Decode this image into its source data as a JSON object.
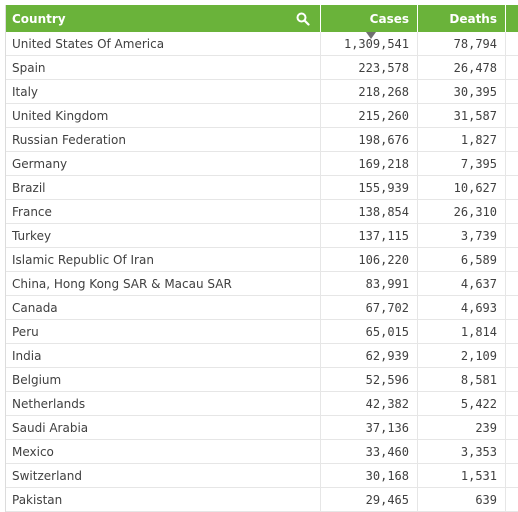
{
  "header": {
    "country": "Country",
    "cases": "Cases",
    "deaths": "Deaths"
  },
  "colors": {
    "header_bg": "#6ab33a",
    "header_text": "#ffffff",
    "row_text": "#404040"
  },
  "icons": {
    "search": "search-icon",
    "sort": "sort-down-indicator"
  },
  "rows": [
    {
      "country": "United States Of America",
      "cases": "1,309,541",
      "deaths": "78,794"
    },
    {
      "country": "Spain",
      "cases": "223,578",
      "deaths": "26,478"
    },
    {
      "country": "Italy",
      "cases": "218,268",
      "deaths": "30,395"
    },
    {
      "country": "United Kingdom",
      "cases": "215,260",
      "deaths": "31,587"
    },
    {
      "country": "Russian Federation",
      "cases": "198,676",
      "deaths": "1,827"
    },
    {
      "country": "Germany",
      "cases": "169,218",
      "deaths": "7,395"
    },
    {
      "country": "Brazil",
      "cases": "155,939",
      "deaths": "10,627"
    },
    {
      "country": "France",
      "cases": "138,854",
      "deaths": "26,310"
    },
    {
      "country": "Turkey",
      "cases": "137,115",
      "deaths": "3,739"
    },
    {
      "country": "Islamic Republic Of Iran",
      "cases": "106,220",
      "deaths": "6,589"
    },
    {
      "country": "China, Hong Kong SAR & Macau SAR",
      "cases": "83,991",
      "deaths": "4,637"
    },
    {
      "country": "Canada",
      "cases": "67,702",
      "deaths": "4,693"
    },
    {
      "country": "Peru",
      "cases": "65,015",
      "deaths": "1,814"
    },
    {
      "country": "India",
      "cases": "62,939",
      "deaths": "2,109"
    },
    {
      "country": "Belgium",
      "cases": "52,596",
      "deaths": "8,581"
    },
    {
      "country": "Netherlands",
      "cases": "42,382",
      "deaths": "5,422"
    },
    {
      "country": "Saudi Arabia",
      "cases": "37,136",
      "deaths": "239"
    },
    {
      "country": "Mexico",
      "cases": "33,460",
      "deaths": "3,353"
    },
    {
      "country": "Switzerland",
      "cases": "30,168",
      "deaths": "1,531"
    },
    {
      "country": "Pakistan",
      "cases": "29,465",
      "deaths": "639"
    }
  ]
}
